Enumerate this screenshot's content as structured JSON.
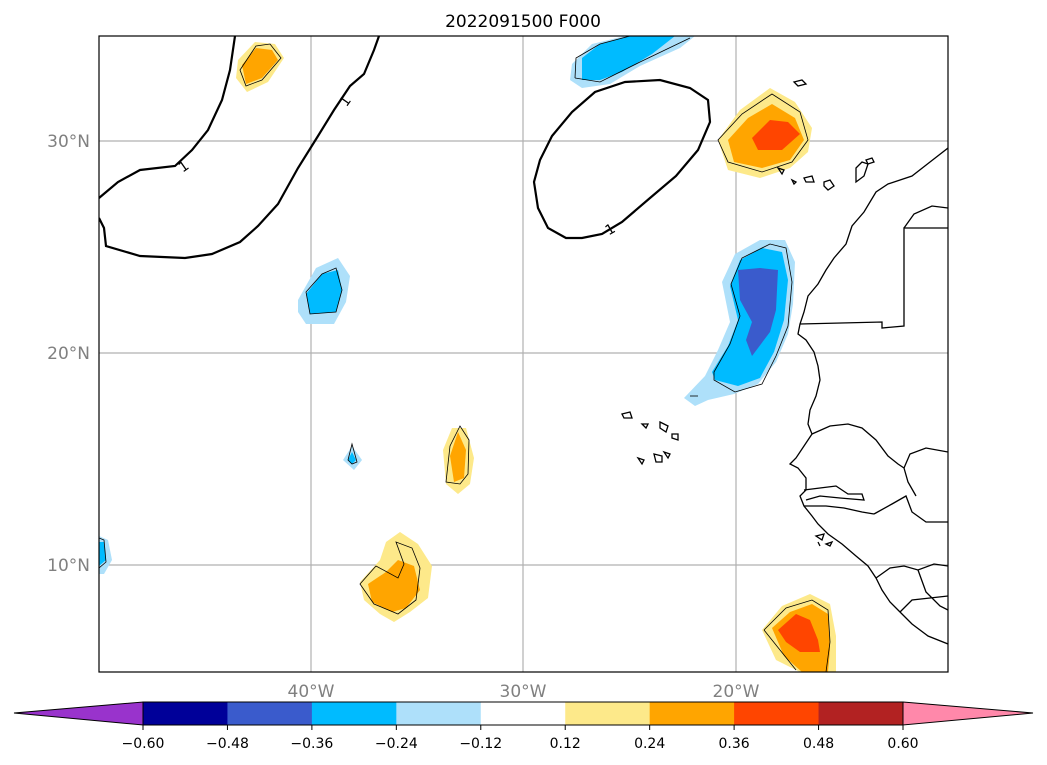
{
  "title": "2022091500 F000",
  "map": {
    "lat_labels": [
      {
        "value": 30,
        "text": "30°N"
      },
      {
        "value": 20,
        "text": "20°N"
      },
      {
        "value": 10,
        "text": "10°N"
      }
    ],
    "lon_labels": [
      {
        "value": -40,
        "text": "40°W"
      },
      {
        "value": -30,
        "text": "30°W"
      },
      {
        "value": -20,
        "text": "20°W"
      }
    ],
    "lon_range": [
      -50,
      -10
    ],
    "lat_range": [
      5,
      35
    ],
    "grid": true,
    "contour_labels": [
      "1",
      "1",
      "1"
    ]
  },
  "colorbar": {
    "ticks": [
      "−0.60",
      "−0.48",
      "−0.36",
      "−0.24",
      "−0.12",
      "0.12",
      "0.24",
      "0.36",
      "0.48",
      "0.60"
    ],
    "colors": {
      "under": "#9933cc",
      "bins": [
        "#000099",
        "#3a5bcc",
        "#00bbff",
        "#aee0fa",
        "#ffffff",
        "#fde98a",
        "#ffa500",
        "#ff4500",
        "#b22222"
      ],
      "over": "#ff88aa"
    },
    "extend": "both"
  }
}
